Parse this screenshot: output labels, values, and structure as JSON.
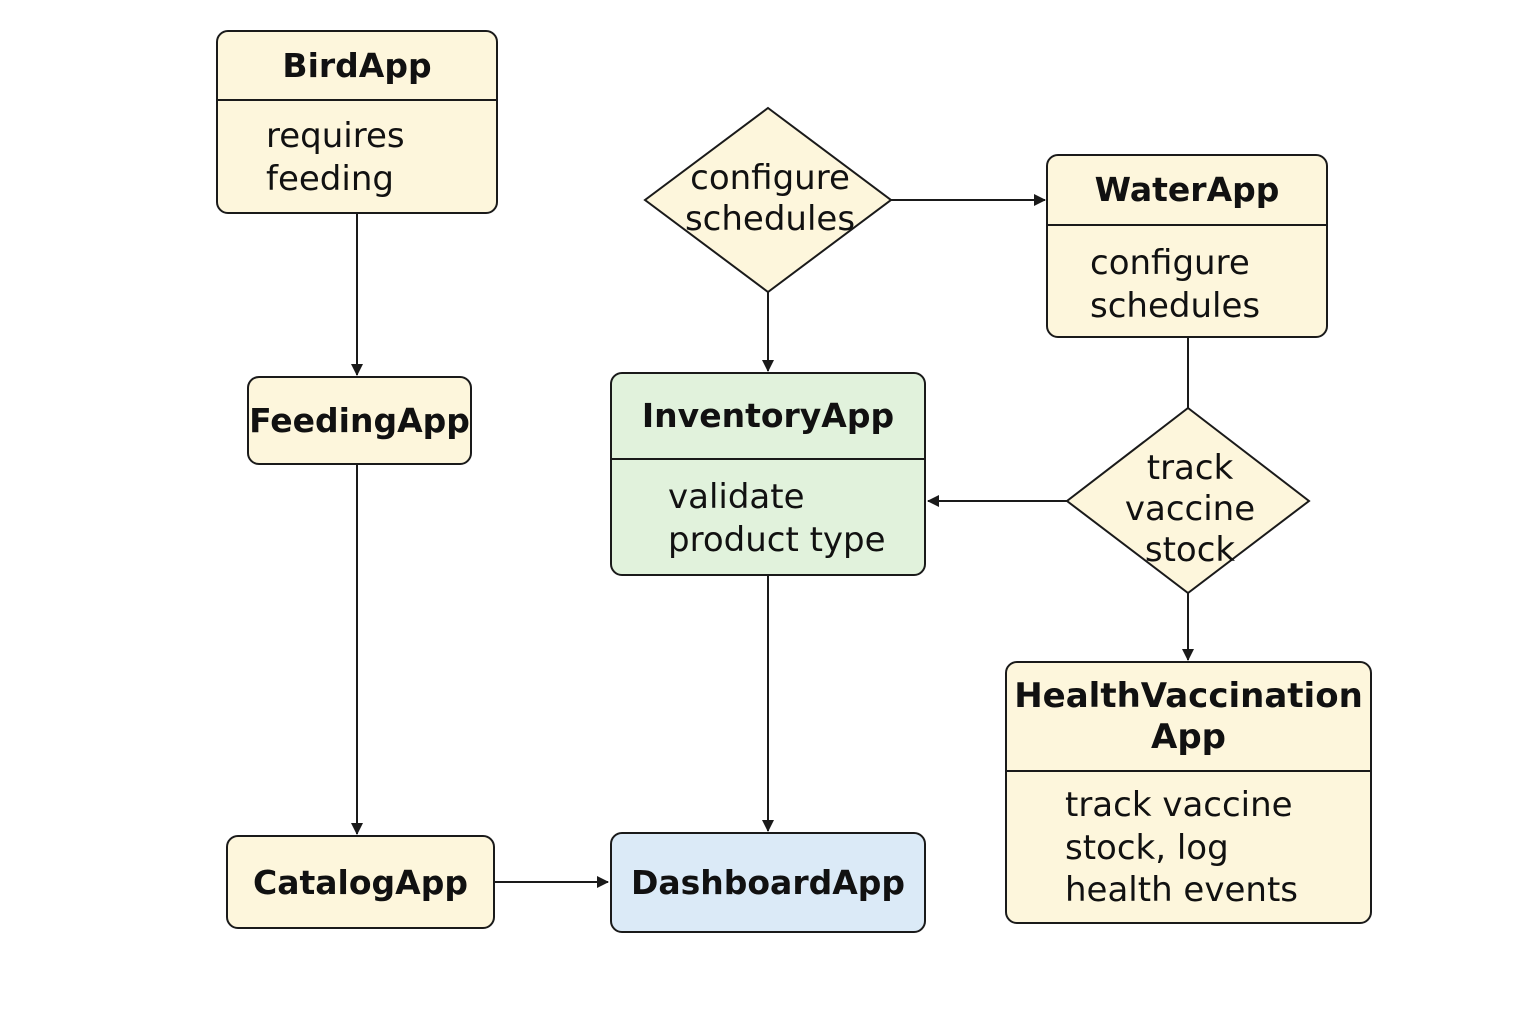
{
  "colors": {
    "cream": "#fdf6dc",
    "green": "#e1f2dc",
    "blue": "#dbeaf7",
    "stroke": "#1a1a1a"
  },
  "nodes": {
    "bird_app": {
      "title": "BirdApp",
      "body": "requires\nfeeding"
    },
    "feeding_app": {
      "title": "FeedingApp"
    },
    "catalog_app": {
      "title": "CatalogApp"
    },
    "inventory_app": {
      "title": "InventoryApp",
      "body": "validate\nproduct type"
    },
    "dashboard_app": {
      "title": "DashboardApp"
    },
    "water_app": {
      "title": "WaterApp",
      "body": "configure\nschedules"
    },
    "health_vaccination_app": {
      "title": "HealthVaccination\nApp",
      "body": "track vaccine\nstock, log\nhealth events"
    }
  },
  "decisions": {
    "configure_schedules": {
      "label": "configure\nschedules"
    },
    "track_vaccine_stock": {
      "label": "track\nvaccine\nstock"
    }
  },
  "edges": [
    {
      "from": "bird_app",
      "to": "feeding_app"
    },
    {
      "from": "feeding_app",
      "to": "catalog_app"
    },
    {
      "from": "catalog_app",
      "to": "dashboard_app"
    },
    {
      "from": "configure_schedules",
      "to": "inventory_app"
    },
    {
      "from": "configure_schedules",
      "to": "water_app"
    },
    {
      "from": "inventory_app",
      "to": "dashboard_app"
    },
    {
      "from": "water_app",
      "to": "track_vaccine_stock"
    },
    {
      "from": "track_vaccine_stock",
      "to": "inventory_app"
    },
    {
      "from": "track_vaccine_stock",
      "to": "health_vaccination_app"
    }
  ]
}
